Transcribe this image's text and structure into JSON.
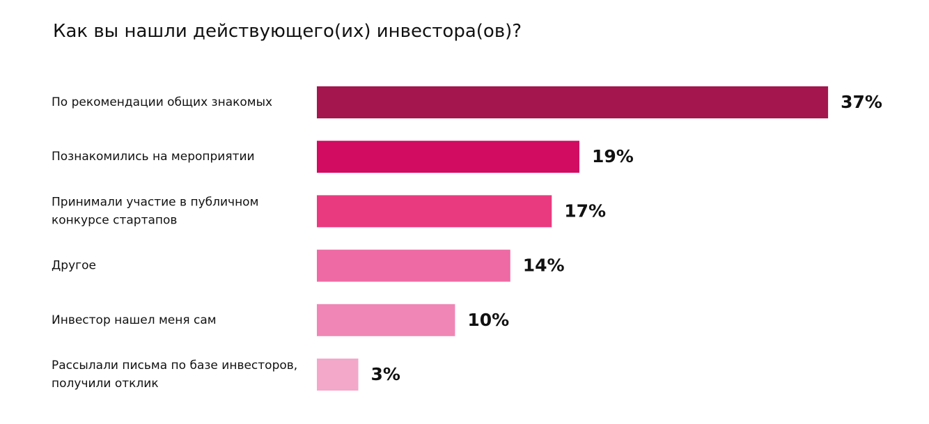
{
  "chart_data": {
    "type": "bar",
    "orientation": "horizontal",
    "title": "Как вы нашли действующего(их) инвестора(ов)?",
    "categories": [
      [
        "По рекомендации общих знакомых"
      ],
      [
        "Познакомились на мероприятии"
      ],
      [
        "Принимали участие в публичном",
        "конкурсе стартапов"
      ],
      [
        "Другое"
      ],
      [
        "Инвестор нашел меня сам"
      ],
      [
        "Рассылали письма по базе инвесторов,",
        "получили отклик"
      ]
    ],
    "values": [
      37,
      19,
      17,
      14,
      10,
      3
    ],
    "value_labels": [
      "37%",
      "19%",
      "17%",
      "14%",
      "10%",
      "3%"
    ],
    "unit": "%",
    "colors": [
      "#a3174e",
      "#d10c61",
      "#e93a7f",
      "#ee6aa4",
      "#f086b5",
      "#f3a8ca"
    ],
    "grid": false,
    "legend": "none"
  }
}
